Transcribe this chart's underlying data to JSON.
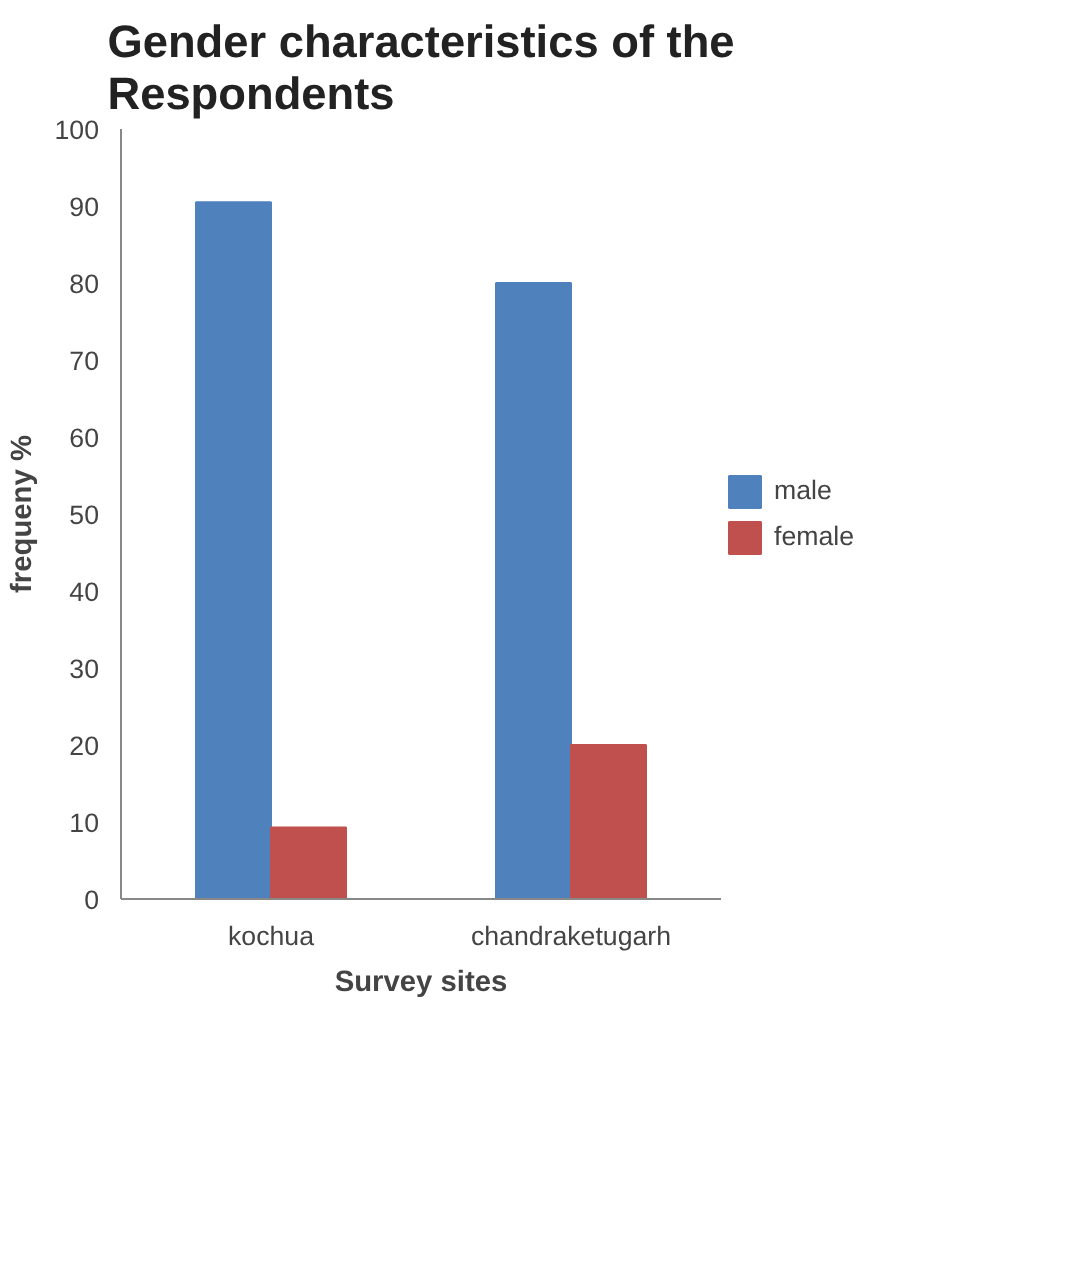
{
  "chart_data": {
    "type": "bar",
    "title": "Gender characteristics of the\nRespondents",
    "xlabel": "Survey sites",
    "ylabel": "frequeny %",
    "categories": [
      "kochua",
      "chandraketugarh"
    ],
    "series": [
      {
        "name": "male",
        "color": "#4f81bd",
        "values": [
          90.5,
          80
        ]
      },
      {
        "name": "female",
        "color": "#c0504d",
        "values": [
          9.3,
          20
        ]
      }
    ],
    "ylim": [
      0,
      100
    ],
    "yticks": [
      0,
      10,
      20,
      30,
      40,
      50,
      60,
      70,
      80,
      90,
      100
    ],
    "grid": false,
    "legend": "right"
  }
}
